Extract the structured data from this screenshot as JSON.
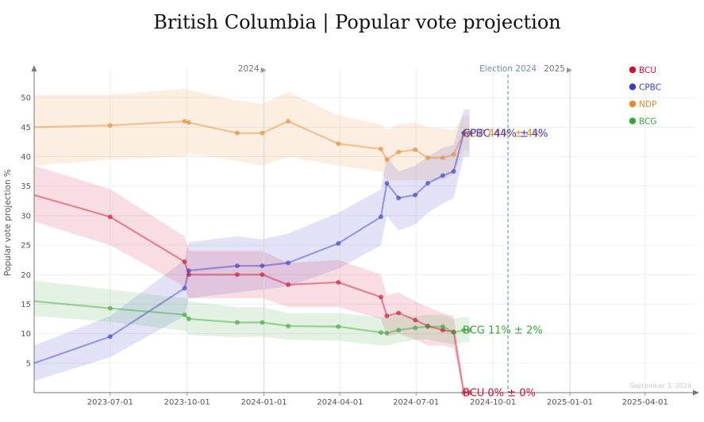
{
  "chart_data": {
    "type": "line",
    "title": "British Columbia | Popular vote projection",
    "ylabel": "Popular vote projection %",
    "xlabel": "",
    "ylim": [
      0,
      55
    ],
    "y_ticks": [
      5,
      10,
      15,
      20,
      25,
      30,
      35,
      40,
      45,
      50
    ],
    "x_range": [
      "2023-04-01",
      "2025-06-01"
    ],
    "x_ticks": [
      "2023-07-01",
      "2023-10-01",
      "2024-01-01",
      "2024-04-01",
      "2024-07-01",
      "2024-10-01",
      "2025-01-01",
      "2025-04-01"
    ],
    "year_markers": [
      {
        "date": "2024-01-01",
        "label": "2024"
      },
      {
        "date": "2025-01-01",
        "label": "2025"
      }
    ],
    "election_marker": {
      "date": "2024-10-19",
      "label": "Election 2024"
    },
    "date_note": "September 3, 2024",
    "grid": true,
    "legend_position": "top-right",
    "series": [
      {
        "name": "NDP",
        "color": "#e8892e",
        "x": [
          "2023-04-01",
          "2023-07-01",
          "2023-09-28",
          "2023-10-03",
          "2023-11-30",
          "2023-12-30",
          "2024-01-30",
          "2024-03-30",
          "2024-05-20",
          "2024-05-27",
          "2024-06-10",
          "2024-06-30",
          "2024-07-15",
          "2024-08-02",
          "2024-08-15",
          "2024-08-27",
          "2024-09-03"
        ],
        "y": [
          45,
          45.3,
          46,
          45.8,
          44,
          44,
          46,
          42.2,
          41.3,
          39.5,
          40.8,
          41.2,
          39.8,
          39.8,
          40.4,
          44,
          44
        ],
        "lower": [
          38.5,
          39.5,
          40,
          40.5,
          39.3,
          38.5,
          40,
          38.5,
          37.5,
          36,
          36,
          36,
          36,
          36,
          37,
          41,
          41
        ],
        "upper": [
          50.5,
          50.5,
          51.5,
          51.3,
          49.5,
          49,
          51,
          47,
          45.5,
          44.5,
          45.5,
          45.8,
          45,
          44.8,
          44.5,
          47,
          47
        ]
      },
      {
        "name": "CPBC",
        "color": "#3a3acd",
        "x": [
          "2023-04-01",
          "2023-07-01",
          "2023-09-28",
          "2023-10-03",
          "2023-11-30",
          "2023-12-30",
          "2024-01-30",
          "2024-03-30",
          "2024-05-20",
          "2024-05-27",
          "2024-06-10",
          "2024-06-30",
          "2024-07-15",
          "2024-08-02",
          "2024-08-15",
          "2024-08-27",
          "2024-09-03"
        ],
        "y": [
          5,
          9.5,
          17.7,
          20.7,
          21.5,
          21.5,
          22,
          25.3,
          29.8,
          35.5,
          33,
          33.5,
          35.5,
          36.8,
          37.5,
          44,
          44
        ],
        "lower": [
          2,
          6,
          13,
          16,
          17,
          17.5,
          18,
          21,
          25,
          30,
          27.5,
          28.5,
          30.5,
          32,
          33,
          40,
          40
        ],
        "upper": [
          8,
          13,
          22.5,
          25.5,
          26.5,
          26,
          27,
          30.5,
          34.5,
          40,
          37.5,
          38.5,
          40,
          41.5,
          42,
          48,
          48
        ]
      },
      {
        "name": "BCU",
        "color": "#cc1133",
        "x": [
          "2023-04-01",
          "2023-07-01",
          "2023-09-28",
          "2023-10-03",
          "2023-11-30",
          "2023-12-30",
          "2024-01-30",
          "2024-03-30",
          "2024-05-20",
          "2024-05-27",
          "2024-06-10",
          "2024-06-30",
          "2024-07-15",
          "2024-08-02",
          "2024-08-15",
          "2024-08-27",
          "2024-09-03"
        ],
        "y": [
          33.5,
          29.8,
          22.2,
          20,
          20,
          20,
          18.3,
          18.7,
          16.2,
          13,
          13.5,
          12.3,
          11.3,
          10.6,
          10.3,
          0,
          0
        ],
        "lower": [
          29,
          25,
          18,
          16,
          16,
          16,
          14.5,
          14.5,
          12.5,
          9.5,
          10,
          9,
          8,
          8,
          7.5,
          0,
          0
        ],
        "upper": [
          38.5,
          34.5,
          26.5,
          24,
          24,
          24,
          22,
          22.5,
          20,
          16.5,
          17,
          15.5,
          14.5,
          13.5,
          13,
          1,
          1
        ]
      },
      {
        "name": "BCG",
        "color": "#3aa63a",
        "x": [
          "2023-04-01",
          "2023-07-01",
          "2023-09-28",
          "2023-10-03",
          "2023-11-30",
          "2023-12-30",
          "2024-01-30",
          "2024-03-30",
          "2024-05-20",
          "2024-05-27",
          "2024-06-10",
          "2024-06-30",
          "2024-07-15",
          "2024-08-02",
          "2024-08-15",
          "2024-08-27",
          "2024-09-03"
        ],
        "y": [
          15.5,
          14.3,
          13.2,
          12.5,
          11.9,
          11.9,
          11.3,
          11.2,
          10.2,
          10.1,
          10.6,
          11,
          11.2,
          11.2,
          10.2,
          10.6,
          10.6
        ],
        "lower": [
          13,
          12,
          10.5,
          9.8,
          9.4,
          9.5,
          9,
          8.8,
          8,
          8,
          8.5,
          9,
          9,
          8.5,
          8.2,
          8.5,
          8.5
        ],
        "upper": [
          19,
          17.5,
          16,
          15.5,
          14.5,
          14.5,
          13.5,
          13.5,
          12.8,
          12.8,
          13,
          13,
          13.2,
          13.2,
          12.5,
          12.8,
          12.8
        ]
      }
    ],
    "end_labels": [
      {
        "series": "NDP",
        "text": "NDP 44% ± 4%",
        "value": 44
      },
      {
        "series": "CPBC",
        "text": "CPBC 44% ± 4%",
        "value": 44
      },
      {
        "series": "BCG",
        "text": "BCG 11% ± 2%",
        "value": 10.6
      },
      {
        "series": "BCU",
        "text": "BCU 0% ± 0%",
        "value": 0
      }
    ]
  }
}
